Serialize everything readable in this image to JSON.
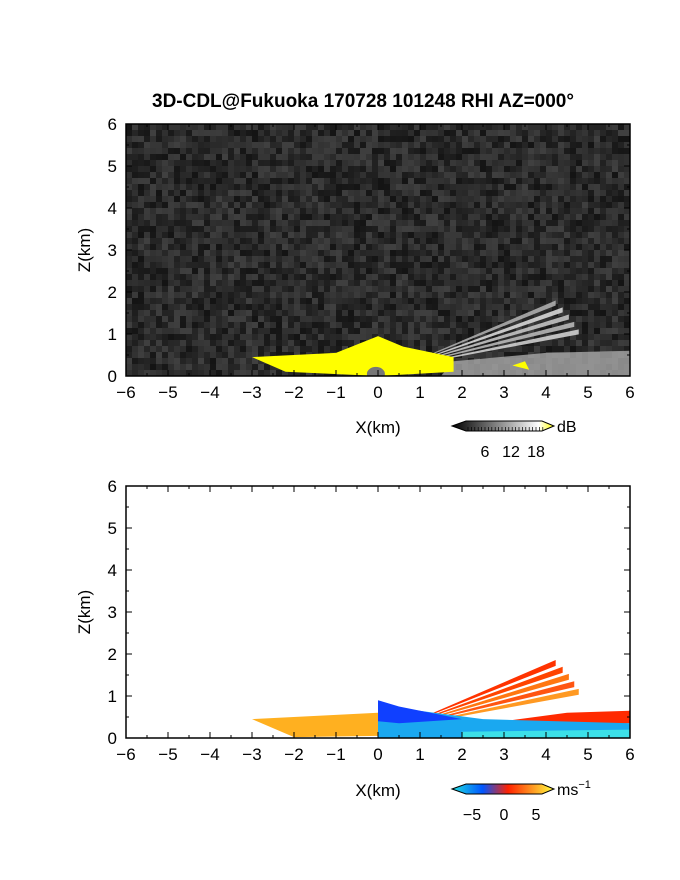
{
  "title": "3D-CDL@Fukuoka 170728 101248 RHI AZ=000°",
  "chart_data": [
    {
      "type": "heatmap",
      "panel": "reflectivity",
      "xlabel": "X(km)",
      "ylabel": "Z(km)",
      "xlim": [
        -6,
        6
      ],
      "ylim": [
        0,
        6
      ],
      "xticks": [
        "-6",
        "-5",
        "-4",
        "-3",
        "-2",
        "-1",
        "0",
        "1",
        "2",
        "3",
        "4",
        "5",
        "6"
      ],
      "yticks": [
        "0",
        "1",
        "2",
        "3",
        "4",
        "5",
        "6"
      ],
      "colorbar": {
        "unit": "dB",
        "ticks": [
          "6",
          "12",
          "18"
        ],
        "range": [
          0,
          20
        ],
        "colors": [
          "#000000",
          "#ffffff",
          "#ffff00"
        ]
      },
      "features": [
        {
          "name": "surface-yellow-layer",
          "x": [
            -3,
            1.8
          ],
          "ztop": 0.45,
          "value_db": 20
        },
        {
          "name": "rays-upper",
          "origin_x": 0.5,
          "angles_deg": [
            18,
            22,
            26,
            30,
            34
          ],
          "max_range_km": 5.5,
          "value_db": 12
        },
        {
          "name": "low-level-return",
          "x": [
            1.5,
            6
          ],
          "ztop": 0.6,
          "value_db": 10
        }
      ],
      "background": "noise"
    },
    {
      "type": "heatmap",
      "panel": "doppler-velocity",
      "xlabel": "X(km)",
      "ylabel": "Z(km)",
      "xlim": [
        -6,
        6
      ],
      "ylim": [
        0,
        6
      ],
      "xticks": [
        "-6",
        "-5",
        "-4",
        "-3",
        "-2",
        "-1",
        "0",
        "1",
        "2",
        "3",
        "4",
        "5",
        "6"
      ],
      "yticks": [
        "0",
        "1",
        "2",
        "3",
        "4",
        "5",
        "6"
      ],
      "colorbar": {
        "unit": "ms",
        "unit_exp": "−1",
        "ticks": [
          "−5",
          "0",
          "5"
        ],
        "range": [
          -7,
          7
        ],
        "colors": [
          "#1fe0e0",
          "#0055ff",
          "#ff2200",
          "#ffff40"
        ]
      },
      "features": [
        {
          "name": "surface-layer-west",
          "x": [
            -3,
            0
          ],
          "ztop": 0.45,
          "velocity": 4
        },
        {
          "name": "surface-layer-east",
          "x": [
            0,
            6
          ],
          "ztop": 0.3,
          "velocity": -4
        },
        {
          "name": "rays-upper",
          "origin_x": 0.5,
          "angles_deg": [
            18,
            22,
            26,
            30,
            34
          ],
          "max_range_km": 5.5,
          "velocity": 2
        }
      ]
    }
  ]
}
